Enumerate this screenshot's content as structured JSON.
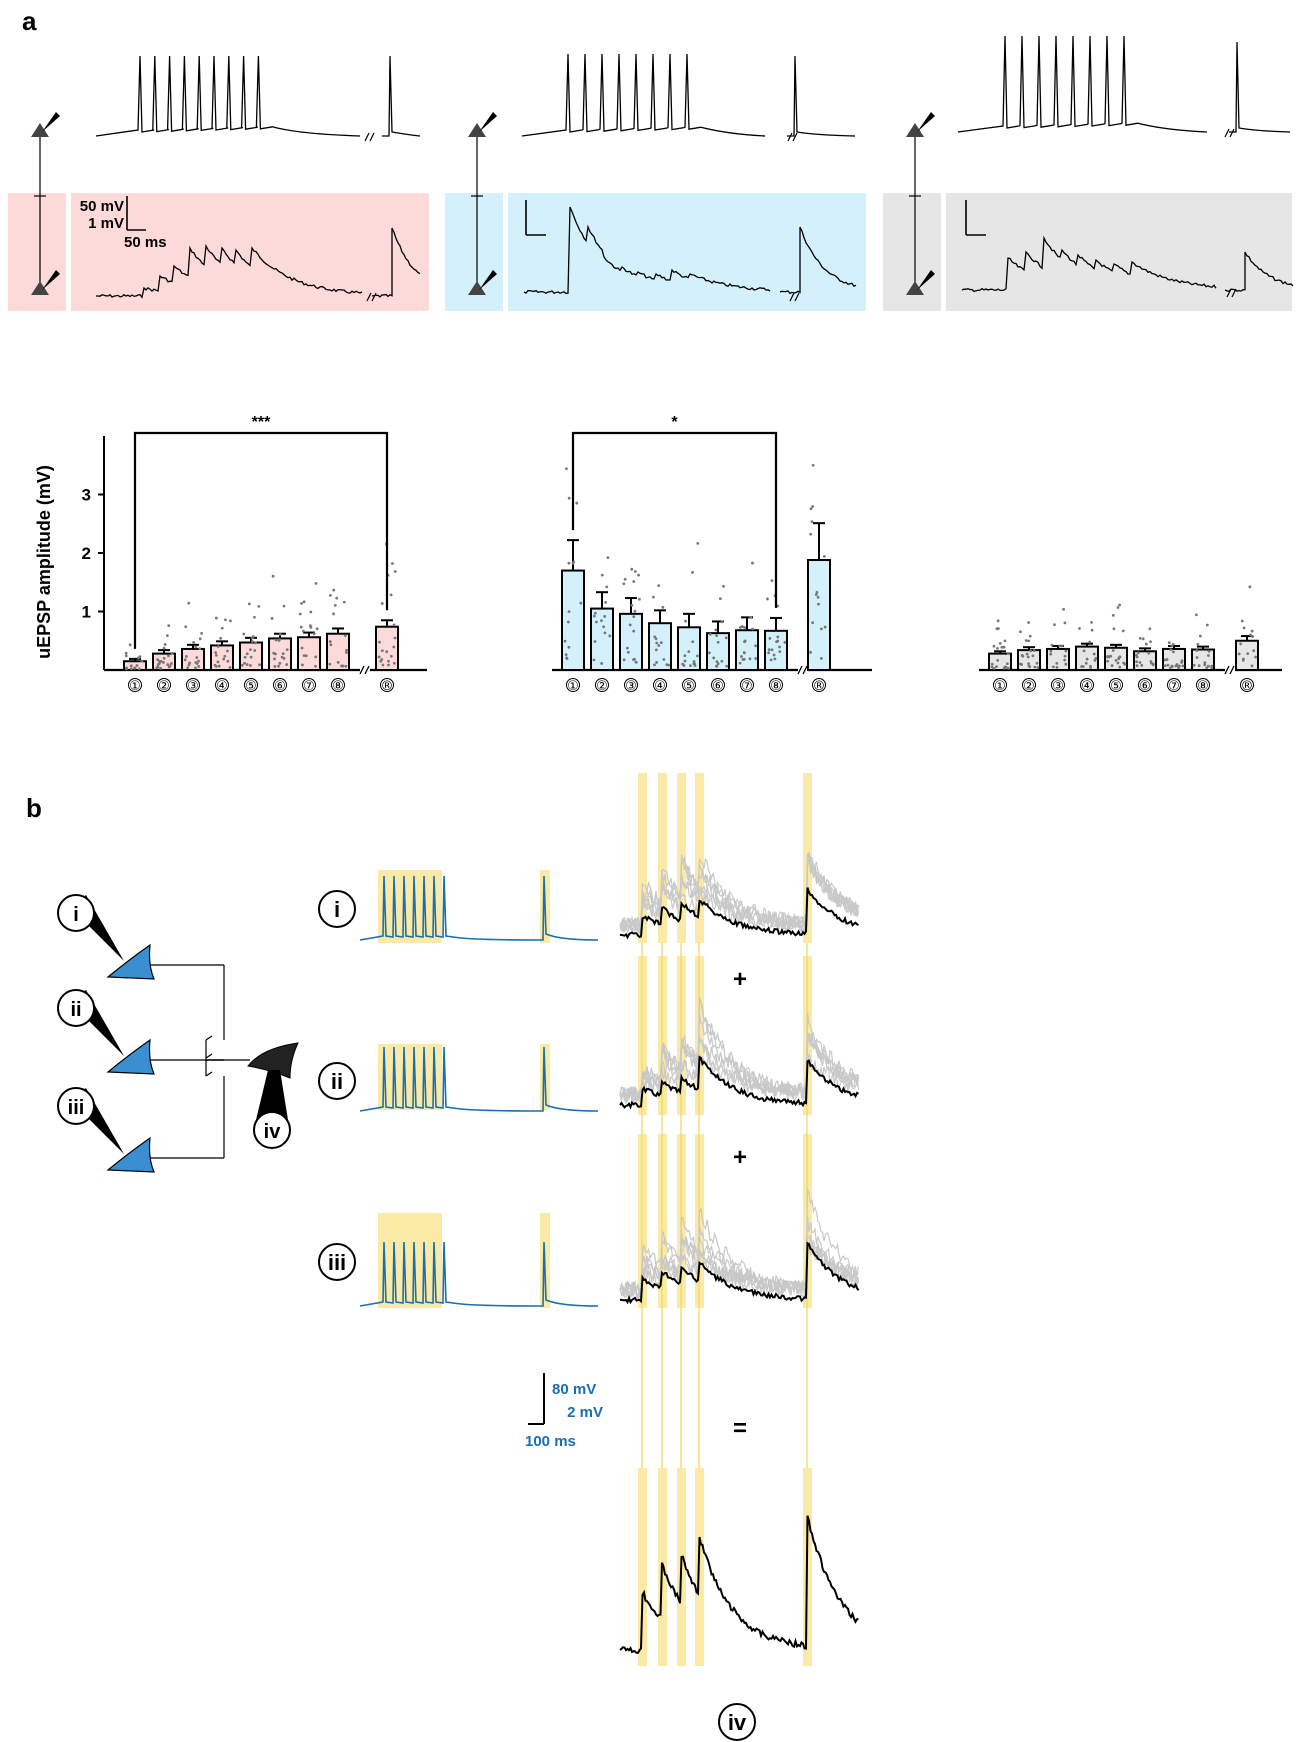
{
  "panel_a": {
    "label": "a",
    "scalebar": {
      "v1": "50 mV",
      "v2": "1 mV",
      "h": "50 ms"
    },
    "ylabel": "uEPSP amplitude (mV)",
    "yticks": [
      "1",
      "2",
      "3"
    ],
    "xticks": [
      "①",
      "②",
      "③",
      "④",
      "⑤",
      "⑥",
      "⑦",
      "⑧",
      "®"
    ],
    "colors": {
      "pink": "#fddada",
      "blue": "#d4f1fb",
      "gray": "#e6e6e6"
    }
  },
  "panel_b": {
    "label": "b",
    "cells": {
      "i": "i",
      "ii": "ii",
      "iii": "iii",
      "iv": "iv"
    },
    "ops": {
      "plus": "+",
      "equals": "="
    },
    "scalebar": {
      "v1": "80 mV",
      "v2": "2 mV",
      "h": "100 ms"
    },
    "colors": {
      "trace": "#1a6fb0",
      "highlight": "#fbe9a6",
      "neuron": "#3a8fd0"
    }
  },
  "chart_data": [
    {
      "type": "bar",
      "categories": [
        "①",
        "②",
        "③",
        "④",
        "⑤",
        "⑥",
        "⑦",
        "⑧",
        "®"
      ],
      "values": [
        0.15,
        0.28,
        0.36,
        0.42,
        0.47,
        0.54,
        0.56,
        0.62,
        0.74
      ],
      "errors": [
        0.04,
        0.06,
        0.07,
        0.07,
        0.08,
        0.08,
        0.08,
        0.09,
        0.11
      ],
      "ylabel": "uEPSP amplitude (mV)",
      "ylim": [
        0,
        4
      ],
      "significance": {
        "from": "①",
        "to": "®",
        "label": "***"
      },
      "color": "#fddada"
    },
    {
      "type": "bar",
      "categories": [
        "①",
        "②",
        "③",
        "④",
        "⑤",
        "⑥",
        "⑦",
        "⑧",
        "®"
      ],
      "values": [
        1.7,
        1.05,
        0.96,
        0.8,
        0.73,
        0.63,
        0.68,
        0.67,
        1.88
      ],
      "errors": [
        0.52,
        0.28,
        0.27,
        0.22,
        0.23,
        0.2,
        0.22,
        0.22,
        0.63
      ],
      "ylim": [
        0,
        4
      ],
      "significance": {
        "from": "①",
        "to": "⑧",
        "label": "*"
      },
      "color": "#d4f1fb"
    },
    {
      "type": "bar",
      "categories": [
        "①",
        "②",
        "③",
        "④",
        "⑤",
        "⑥",
        "⑦",
        "⑧",
        "®"
      ],
      "values": [
        0.28,
        0.34,
        0.36,
        0.4,
        0.38,
        0.32,
        0.36,
        0.35,
        0.5
      ],
      "errors": [
        0.04,
        0.05,
        0.05,
        0.05,
        0.05,
        0.05,
        0.05,
        0.05,
        0.08
      ],
      "ylim": [
        0,
        4
      ],
      "color": "#e6e6e6"
    }
  ]
}
